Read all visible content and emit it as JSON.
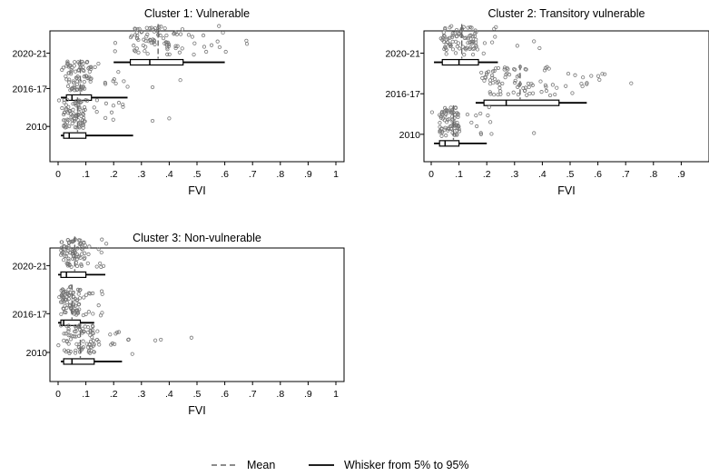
{
  "figure": {
    "legend": {
      "mean_label": "Mean",
      "whisker_label": "Whisker from 5% to 95%",
      "placement": "bottom-center"
    }
  },
  "chart_data": [
    {
      "type": "box",
      "title": "Cluster 1: Vulnerable",
      "xlabel": "FVI",
      "ylabel": "",
      "xlim": [
        0,
        1
      ],
      "xticks": [
        "0",
        ".1",
        ".2",
        ".3",
        ".4",
        ".5",
        ".6",
        ".7",
        ".8",
        ".9",
        "1"
      ],
      "grid": false,
      "categories": [
        "2020-21",
        "2016-17",
        "2010"
      ],
      "rows": [
        {
          "label": "2020-21",
          "p5": 0.2,
          "q1": 0.26,
          "median": 0.33,
          "q3": 0.45,
          "p95": 0.6,
          "mean": 0.36,
          "points_range": [
            0.19,
            0.68
          ],
          "outliers": [
            0.68
          ]
        },
        {
          "label": "2016-17",
          "p5": 0.01,
          "q1": 0.03,
          "median": 0.05,
          "q3": 0.12,
          "p95": 0.25,
          "mean": 0.08,
          "points_range": [
            0.0,
            0.26
          ],
          "outliers": [
            0.34,
            0.44
          ]
        },
        {
          "label": "2010",
          "p5": 0.01,
          "q1": 0.02,
          "median": 0.04,
          "q3": 0.1,
          "p95": 0.27,
          "mean": 0.07,
          "points_range": [
            0.0,
            0.26
          ],
          "outliers": [
            0.34,
            0.4
          ]
        }
      ]
    },
    {
      "type": "box",
      "title": "Cluster 2: Transitory vulnerable",
      "xlabel": "FVI",
      "ylabel": "",
      "xlim": [
        0,
        1
      ],
      "xticks": [
        "0",
        ".1",
        ".2",
        ".3",
        ".4",
        ".5",
        ".6",
        ".7",
        ".8",
        ".9",
        "1"
      ],
      "grid": false,
      "categories": [
        "2020-21",
        "2016-17",
        "2010"
      ],
      "rows": [
        {
          "label": "2020-21",
          "p5": 0.01,
          "q1": 0.04,
          "median": 0.1,
          "q3": 0.17,
          "p95": 0.24,
          "mean": 0.11,
          "points_range": [
            0.0,
            0.24
          ],
          "outliers": [
            0.31,
            0.37,
            0.39
          ]
        },
        {
          "label": "2016-17",
          "p5": 0.16,
          "q1": 0.19,
          "median": 0.27,
          "q3": 0.46,
          "p95": 0.56,
          "mean": 0.32,
          "points_range": [
            0.16,
            0.64
          ],
          "outliers": [
            0.72
          ]
        },
        {
          "label": "2010",
          "p5": 0.01,
          "q1": 0.03,
          "median": 0.05,
          "q3": 0.1,
          "p95": 0.2,
          "mean": 0.08,
          "points_range": [
            0.0,
            0.23
          ],
          "outliers": [
            0.37
          ]
        }
      ]
    },
    {
      "type": "box",
      "title": "Cluster 3: Non-vulnerable",
      "xlabel": "FVI",
      "ylabel": "",
      "xlim": [
        0,
        1
      ],
      "xticks": [
        "0",
        ".1",
        ".2",
        ".3",
        ".4",
        ".5",
        ".6",
        ".7",
        ".8",
        ".9",
        "1"
      ],
      "grid": false,
      "categories": [
        "2020-21",
        "2016-17",
        "2010"
      ],
      "rows": [
        {
          "label": "2020-21",
          "p5": 0.0,
          "q1": 0.01,
          "median": 0.03,
          "q3": 0.1,
          "p95": 0.17,
          "mean": 0.06,
          "points_range": [
            0.0,
            0.19
          ],
          "outliers": []
        },
        {
          "label": "2016-17",
          "p5": 0.0,
          "q1": 0.01,
          "median": 0.02,
          "q3": 0.08,
          "p95": 0.13,
          "mean": 0.05,
          "points_range": [
            0.0,
            0.16
          ],
          "outliers": []
        },
        {
          "label": "2010",
          "p5": 0.01,
          "q1": 0.02,
          "median": 0.05,
          "q3": 0.13,
          "p95": 0.23,
          "mean": 0.08,
          "points_range": [
            0.0,
            0.27
          ],
          "outliers": [
            0.35,
            0.37,
            0.48
          ]
        }
      ]
    }
  ]
}
